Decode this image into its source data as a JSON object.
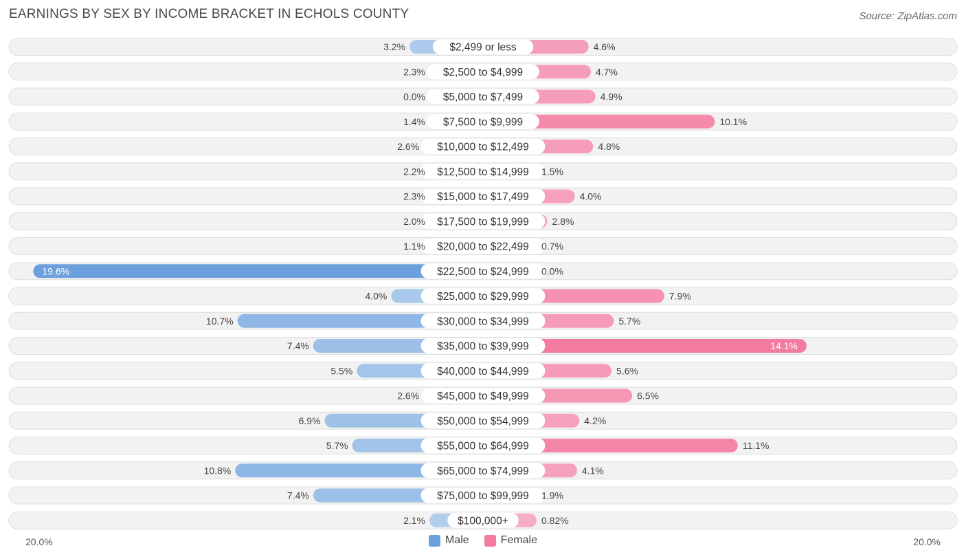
{
  "title": "EARNINGS BY SEX BY INCOME BRACKET IN ECHOLS COUNTY",
  "source": "Source: ZipAtlas.com",
  "axis": {
    "left_label": "20.0%",
    "right_label": "20.0%"
  },
  "legend": {
    "male_label": "Male",
    "female_label": "Female",
    "male_color": "#6ca0dc",
    "female_color": "#f47ba0"
  },
  "chart_data": {
    "type": "bar",
    "orientation": "diverging-horizontal",
    "title": "EARNINGS BY SEX BY INCOME BRACKET IN ECHOLS COUNTY",
    "xlim": [
      -20,
      20
    ],
    "categories": [
      "$2,499 or less",
      "$2,500 to $4,999",
      "$5,000 to $7,499",
      "$7,500 to $9,999",
      "$10,000 to $12,499",
      "$12,500 to $14,999",
      "$15,000 to $17,499",
      "$17,500 to $19,999",
      "$20,000 to $22,499",
      "$22,500 to $24,999",
      "$25,000 to $29,999",
      "$30,000 to $34,999",
      "$35,000 to $39,999",
      "$40,000 to $44,999",
      "$45,000 to $49,999",
      "$50,000 to $54,999",
      "$55,000 to $64,999",
      "$65,000 to $74,999",
      "$75,000 to $99,999",
      "$100,000+"
    ],
    "series": [
      {
        "name": "Male",
        "values": [
          3.2,
          2.3,
          0.0,
          1.4,
          2.6,
          2.2,
          2.3,
          2.0,
          1.1,
          19.6,
          4.0,
          10.7,
          7.4,
          5.5,
          2.6,
          6.9,
          5.7,
          10.8,
          7.4,
          2.1
        ],
        "labels": [
          "3.2%",
          "2.3%",
          "0.0%",
          "1.4%",
          "2.6%",
          "2.2%",
          "2.3%",
          "2.0%",
          "1.1%",
          "19.6%",
          "4.0%",
          "10.7%",
          "7.4%",
          "5.5%",
          "2.6%",
          "6.9%",
          "5.7%",
          "10.8%",
          "7.4%",
          "2.1%"
        ]
      },
      {
        "name": "Female",
        "values": [
          4.6,
          4.7,
          4.9,
          10.1,
          4.8,
          1.5,
          4.0,
          2.8,
          0.7,
          0.0,
          7.9,
          5.7,
          14.1,
          5.6,
          6.5,
          4.2,
          11.1,
          4.1,
          1.9,
          0.82
        ],
        "labels": [
          "4.6%",
          "4.7%",
          "4.9%",
          "10.1%",
          "4.8%",
          "1.5%",
          "4.0%",
          "2.8%",
          "0.7%",
          "0.0%",
          "7.9%",
          "5.7%",
          "14.1%",
          "5.6%",
          "6.5%",
          "4.2%",
          "11.1%",
          "4.1%",
          "1.9%",
          "0.82%"
        ]
      }
    ]
  }
}
